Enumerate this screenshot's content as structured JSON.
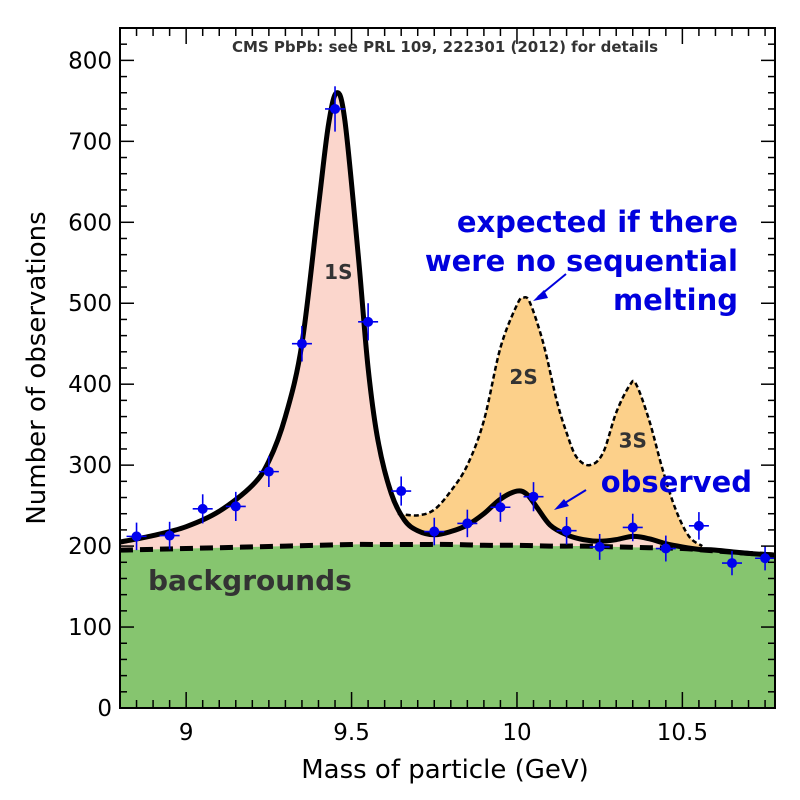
{
  "chart_data": {
    "type": "area",
    "title": "CMS PbPb: see PRL 109, 222301 (2012) for details",
    "xlabel": "Mass of particle (GeV)",
    "ylabel": "Number of observations",
    "xlim": [
      8.8,
      10.78
    ],
    "ylim": [
      0,
      840
    ],
    "xticks": [
      9,
      9.5,
      10,
      10.5
    ],
    "xtick_labels": [
      "9",
      "9.5",
      "10",
      "10.5"
    ],
    "yticks": [
      0,
      100,
      200,
      300,
      400,
      500,
      600,
      700,
      800
    ],
    "ytick_labels": [
      "0",
      "100",
      "200",
      "300",
      "400",
      "500",
      "600",
      "700",
      "800"
    ],
    "grid": false,
    "colors": {
      "background_fill": "#86c56f",
      "observed_fill": "#fbd6cc",
      "expected_fill": "#fcd08a",
      "points": "#0000ee",
      "annotation_blue": "#0000dd",
      "label_dark": "#333333"
    },
    "peak_labels": [
      {
        "text": "1S",
        "x": 9.46,
        "y": 530
      },
      {
        "text": "2S",
        "x": 10.02,
        "y": 400
      },
      {
        "text": "3S",
        "x": 10.35,
        "y": 322
      }
    ],
    "annotations": {
      "expected": [
        "expected if there",
        "were no sequential",
        "melting"
      ],
      "observed": "observed",
      "backgrounds": "backgrounds"
    },
    "series": [
      {
        "name": "backgrounds",
        "style": "dashed",
        "x": [
          8.8,
          8.9,
          9.0,
          9.1,
          9.2,
          9.3,
          9.4,
          9.5,
          9.6,
          9.7,
          9.8,
          9.9,
          10.0,
          10.1,
          10.2,
          10.3,
          10.4,
          10.5,
          10.6,
          10.7,
          10.78
        ],
        "y": [
          195,
          196,
          197,
          198,
          199,
          200,
          201,
          202,
          202,
          202,
          202,
          201,
          201,
          200,
          200,
          199,
          198,
          197,
          194,
          191,
          189
        ]
      },
      {
        "name": "observed",
        "style": "solid",
        "x": [
          8.8,
          8.9,
          9.0,
          9.1,
          9.2,
          9.25,
          9.3,
          9.35,
          9.4,
          9.43,
          9.455,
          9.48,
          9.52,
          9.55,
          9.58,
          9.62,
          9.66,
          9.7,
          9.75,
          9.8,
          9.85,
          9.9,
          9.95,
          10.0,
          10.03,
          10.06,
          10.1,
          10.15,
          10.2,
          10.25,
          10.3,
          10.35,
          10.4,
          10.45,
          10.5,
          10.55,
          10.6,
          10.7,
          10.78
        ],
        "y": [
          205,
          213,
          224,
          243,
          275,
          305,
          360,
          450,
          620,
          720,
          760,
          725,
          560,
          420,
          330,
          265,
          232,
          219,
          214,
          218,
          226,
          240,
          258,
          268,
          264,
          248,
          226,
          214,
          208,
          206,
          208,
          212,
          209,
          203,
          199,
          196,
          195,
          191,
          189
        ]
      },
      {
        "name": "expected",
        "style": "dotted",
        "x": [
          9.64,
          9.7,
          9.75,
          9.8,
          9.85,
          9.9,
          9.95,
          10.0,
          10.02,
          10.04,
          10.08,
          10.12,
          10.15,
          10.18,
          10.22,
          10.26,
          10.3,
          10.34,
          10.36,
          10.4,
          10.44,
          10.48,
          10.52,
          10.56
        ],
        "y": [
          240,
          238,
          245,
          268,
          300,
          355,
          445,
          498,
          507,
          500,
          450,
          380,
          340,
          310,
          300,
          315,
          365,
          398,
          400,
          355,
          295,
          245,
          212,
          200
        ]
      }
    ],
    "points": {
      "name": "data",
      "x": [
        8.85,
        8.95,
        9.05,
        9.15,
        9.25,
        9.35,
        9.45,
        9.55,
        9.65,
        9.75,
        9.85,
        9.95,
        10.05,
        10.15,
        10.25,
        10.35,
        10.45,
        10.55,
        10.65,
        10.75
      ],
      "y": [
        212,
        213,
        246,
        249,
        292,
        450,
        740,
        477,
        268,
        218,
        228,
        248,
        261,
        219,
        199,
        223,
        197,
        225,
        179,
        185
      ],
      "err": [
        17,
        17,
        18,
        18,
        19,
        22,
        28,
        23,
        18,
        17,
        17,
        18,
        18,
        17,
        16,
        17,
        16,
        17,
        15,
        15
      ]
    }
  }
}
